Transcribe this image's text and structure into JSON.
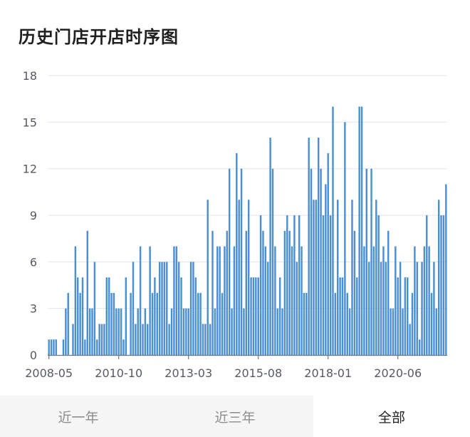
{
  "title": "历史门店开店时序图",
  "tabs": [
    {
      "label": "近一年",
      "active": false
    },
    {
      "label": "近三年",
      "active": false
    },
    {
      "label": "全部",
      "active": true
    }
  ],
  "chart_data": {
    "type": "bar",
    "title": "历史门店开店时序图",
    "xlabel": "",
    "ylabel": "",
    "ylim": [
      0,
      18
    ],
    "yticks": [
      0,
      3,
      6,
      9,
      12,
      15,
      18
    ],
    "xticks": [
      "2008-05",
      "2010-10",
      "2013-03",
      "2015-08",
      "2018-01",
      "2020-06"
    ],
    "grid": true,
    "bar_color": "#4a8fd4",
    "start_month": "2008-05",
    "values": [
      1,
      1,
      1,
      1,
      0,
      0,
      1,
      3,
      4,
      0,
      2,
      7,
      5,
      4,
      5,
      1,
      8,
      3,
      3,
      6,
      1,
      2,
      2,
      2,
      5,
      5,
      4,
      4,
      3,
      3,
      3,
      1,
      5,
      0,
      4,
      6,
      2,
      3,
      7,
      2,
      3,
      2,
      7,
      4,
      5,
      4,
      6,
      6,
      6,
      6,
      2,
      3,
      7,
      7,
      6,
      5,
      3,
      3,
      3,
      6,
      6,
      5,
      4,
      4,
      2,
      2,
      10,
      2,
      8,
      3,
      7,
      7,
      4,
      7,
      8,
      12,
      3,
      7,
      13,
      10,
      12,
      3,
      8,
      10,
      5,
      5,
      5,
      5,
      9,
      8,
      7,
      6,
      14,
      12,
      7,
      3,
      5,
      3,
      8,
      9,
      8,
      7,
      9,
      6,
      9,
      7,
      4,
      4,
      14,
      12,
      10,
      10,
      14,
      12,
      9,
      11,
      13,
      9,
      16,
      4,
      10,
      5,
      5,
      15,
      4,
      3,
      10,
      8,
      5,
      16,
      16,
      7,
      12,
      6,
      12,
      7,
      10,
      9,
      6,
      7,
      6,
      8,
      3,
      3,
      7,
      5,
      6,
      3,
      5,
      5,
      2,
      4,
      7,
      6,
      1,
      6,
      7,
      9,
      7,
      4,
      6,
      3,
      10,
      9,
      9,
      11
    ]
  }
}
